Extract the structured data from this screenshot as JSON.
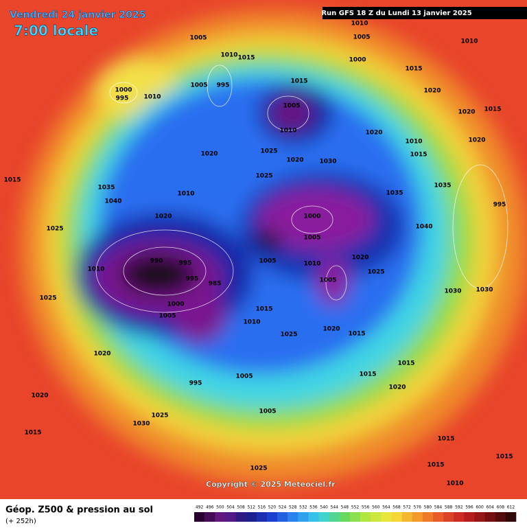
{
  "header": {
    "date": "Vendredi 24 janvier 2025",
    "time": "7:00 locale",
    "run": "Run GFS 18 Z du Lundi 13 janvier 2025"
  },
  "isobar_labels": [
    1005,
    995,
    1010,
    1015,
    1005,
    1010,
    1005,
    1000,
    1015,
    1010,
    1015,
    1005,
    1010,
    1020,
    1020,
    1015,
    1020,
    1010,
    1015,
    1020,
    1000,
    995,
    1010,
    1020,
    1025,
    1020,
    1030,
    1025,
    1015,
    1035,
    1040,
    1010,
    1035,
    1035,
    995,
    1020,
    1000,
    1005,
    1040,
    1025,
    990,
    995,
    1010,
    1005,
    1010,
    1020,
    1025,
    995,
    1005,
    1025,
    985,
    1000,
    1005,
    1015,
    1030,
    1030,
    1010,
    1020,
    1015,
    1025,
    1020,
    1005,
    995,
    1015,
    1020,
    1015,
    1005,
    1020,
    1025,
    1030,
    1015,
    1015,
    1015,
    1015,
    1010,
    1025
  ],
  "copyright": "Copyright © 2025 Meteociel.fr",
  "legend": {
    "title": "Géop. Z500 & pression au sol",
    "lead": "(+ 252h)",
    "scale": [
      492,
      496,
      500,
      504,
      508,
      512,
      516,
      520,
      524,
      528,
      532,
      536,
      540,
      544,
      548,
      552,
      556,
      560,
      564,
      568,
      572,
      576,
      580,
      584,
      588,
      592,
      596,
      600,
      604,
      608,
      612
    ]
  }
}
